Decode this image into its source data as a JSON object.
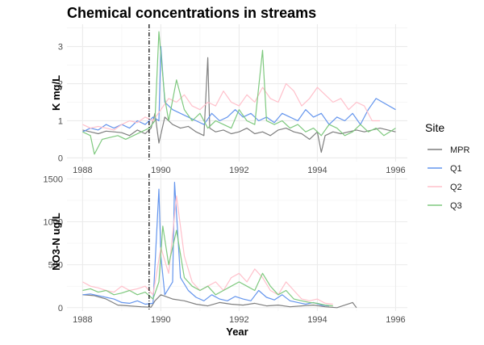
{
  "chart_data": [
    {
      "type": "line",
      "title": "Chemical concentrations in streams",
      "xlabel": "",
      "ylabel": "K mg/L",
      "xlim": [
        1987.6,
        1996.3
      ],
      "ylim": [
        -0.1,
        3.6
      ],
      "xticks": [
        1988,
        1990,
        1992,
        1994,
        1996
      ],
      "xtick_labels": [
        "1988",
        "1990",
        "1992",
        "1994",
        "1996"
      ],
      "yticks": [
        0,
        1,
        2,
        3
      ],
      "ytick_labels": [
        "0",
        "1",
        "2",
        "3"
      ],
      "vline_x": 1989.7,
      "grid": true,
      "legend": "right",
      "series": [
        {
          "name": "MPR",
          "color": "#7f7f7f",
          "x": [
            1988.0,
            1988.2,
            1988.4,
            1988.6,
            1988.8,
            1989.0,
            1989.2,
            1989.4,
            1989.6,
            1989.75,
            1989.85,
            1989.95,
            1990.1,
            1990.3,
            1990.5,
            1990.7,
            1990.9,
            1991.1,
            1991.2,
            1991.25,
            1991.4,
            1991.6,
            1991.8,
            1992.0,
            1992.2,
            1992.4,
            1992.6,
            1992.8,
            1993.0,
            1993.2,
            1993.4,
            1993.6,
            1993.8,
            1994.0,
            1994.1,
            1994.2,
            1994.4,
            1994.6,
            1994.8,
            1995.0,
            1995.2,
            1995.4,
            1995.6,
            1996.0
          ],
          "y": [
            0.75,
            0.7,
            0.65,
            0.72,
            0.7,
            0.68,
            0.6,
            0.75,
            0.65,
            0.8,
            1.2,
            0.4,
            1.1,
            0.9,
            0.8,
            0.85,
            0.7,
            0.6,
            2.7,
            0.8,
            0.7,
            0.75,
            0.65,
            0.7,
            0.8,
            0.65,
            0.7,
            0.6,
            0.75,
            0.8,
            0.7,
            0.65,
            0.5,
            0.7,
            0.15,
            0.6,
            0.7,
            0.65,
            0.7,
            0.75,
            0.7,
            0.75,
            0.8,
            0.7
          ]
        },
        {
          "name": "Q1",
          "color": "#6495ed",
          "x": [
            1988.0,
            1988.2,
            1988.4,
            1988.6,
            1988.8,
            1989.0,
            1989.2,
            1989.4,
            1989.6,
            1989.8,
            1989.95,
            1990.0,
            1990.1,
            1990.3,
            1990.5,
            1990.7,
            1990.9,
            1991.1,
            1991.3,
            1991.5,
            1991.7,
            1991.9,
            1992.1,
            1992.3,
            1992.5,
            1992.7,
            1992.9,
            1993.1,
            1993.3,
            1993.5,
            1993.7,
            1993.9,
            1994.1,
            1994.3,
            1994.5,
            1994.7,
            1994.9,
            1995.1,
            1995.3,
            1995.5,
            1996.0
          ],
          "y": [
            0.7,
            0.8,
            0.75,
            0.9,
            0.8,
            0.9,
            0.8,
            1.0,
            0.9,
            1.1,
            1.0,
            3.0,
            1.5,
            1.3,
            1.2,
            1.1,
            1.0,
            0.9,
            1.2,
            1.0,
            1.1,
            1.3,
            1.1,
            1.2,
            1.0,
            1.1,
            0.95,
            1.2,
            1.1,
            1.0,
            1.3,
            1.1,
            1.2,
            0.9,
            1.1,
            1.0,
            1.2,
            0.9,
            1.3,
            1.6,
            1.3
          ]
        },
        {
          "name": "Q2",
          "color": "#ffc0cb",
          "x": [
            1988.0,
            1988.2,
            1988.4,
            1988.6,
            1988.8,
            1989.0,
            1989.2,
            1989.4,
            1989.6,
            1989.8,
            1990.0,
            1990.2,
            1990.4,
            1990.6,
            1990.8,
            1991.0,
            1991.2,
            1991.4,
            1991.6,
            1991.8,
            1992.0,
            1992.2,
            1992.4,
            1992.6,
            1992.8,
            1993.0,
            1993.2,
            1993.4,
            1993.6,
            1993.8,
            1994.0,
            1994.2,
            1994.4,
            1994.6,
            1994.8,
            1995.0,
            1995.2,
            1995.4,
            1995.6
          ],
          "y": [
            0.9,
            0.8,
            0.85,
            0.8,
            0.75,
            0.9,
            1.0,
            0.95,
            1.1,
            1.0,
            1.3,
            1.6,
            1.5,
            1.7,
            1.4,
            1.3,
            1.5,
            1.4,
            1.8,
            1.5,
            1.4,
            1.7,
            1.5,
            1.9,
            1.6,
            1.5,
            2.0,
            1.8,
            1.4,
            1.6,
            1.9,
            1.7,
            1.5,
            1.6,
            1.3,
            1.5,
            1.4,
            1.0,
            1.0
          ]
        },
        {
          "name": "Q3",
          "color": "#7fc97f",
          "x": [
            1988.0,
            1988.2,
            1988.3,
            1988.5,
            1988.7,
            1988.9,
            1989.1,
            1989.3,
            1989.5,
            1989.7,
            1989.85,
            1989.95,
            1990.1,
            1990.2,
            1990.4,
            1990.6,
            1990.8,
            1991.0,
            1991.2,
            1991.4,
            1991.6,
            1991.8,
            1992.0,
            1992.2,
            1992.4,
            1992.6,
            1992.7,
            1992.9,
            1993.1,
            1993.3,
            1993.5,
            1993.7,
            1993.9,
            1994.1,
            1994.3,
            1994.5,
            1994.7,
            1994.9,
            1995.1,
            1995.3,
            1995.5,
            1995.7,
            1996.0
          ],
          "y": [
            0.7,
            0.6,
            0.1,
            0.5,
            0.55,
            0.6,
            0.5,
            0.6,
            0.7,
            0.8,
            1.0,
            3.4,
            1.6,
            1.0,
            2.1,
            1.3,
            1.0,
            1.2,
            0.8,
            1.0,
            0.9,
            0.8,
            1.3,
            1.0,
            0.9,
            2.9,
            1.0,
            0.9,
            1.0,
            0.8,
            0.9,
            0.7,
            0.8,
            0.6,
            0.9,
            0.8,
            0.6,
            0.7,
            0.9,
            0.7,
            0.8,
            0.6,
            0.8
          ]
        }
      ]
    },
    {
      "type": "line",
      "title": "",
      "xlabel": "Year",
      "ylabel": "NO3-N ug/L",
      "xlim": [
        1987.6,
        1996.3
      ],
      "ylim": [
        -40,
        1560
      ],
      "xticks": [
        1988,
        1990,
        1992,
        1994,
        1996
      ],
      "xtick_labels": [
        "1988",
        "1990",
        "1992",
        "1994",
        "1996"
      ],
      "yticks": [
        0,
        500,
        1000,
        1500
      ],
      "ytick_labels": [
        "0",
        "500",
        "1000",
        "1500"
      ],
      "vline_x": 1989.7,
      "grid": true,
      "legend": "right",
      "series": [
        {
          "name": "MPR",
          "color": "#7f7f7f",
          "x": [
            1988.0,
            1988.3,
            1988.6,
            1988.9,
            1989.2,
            1989.5,
            1989.75,
            1989.85,
            1990.0,
            1990.3,
            1990.6,
            1990.9,
            1991.2,
            1991.5,
            1991.8,
            1992.1,
            1992.4,
            1992.7,
            1993.0,
            1993.3,
            1993.6,
            1993.9,
            1994.2,
            1994.5,
            1994.9,
            1995.0
          ],
          "y": [
            150,
            140,
            100,
            30,
            20,
            10,
            5,
            80,
            150,
            100,
            80,
            40,
            20,
            60,
            40,
            30,
            50,
            20,
            30,
            10,
            20,
            30,
            10,
            0,
            60,
            0
          ]
        },
        {
          "name": "Q1",
          "color": "#6495ed",
          "x": [
            1988.0,
            1988.2,
            1988.4,
            1988.6,
            1988.8,
            1989.0,
            1989.2,
            1989.4,
            1989.6,
            1989.8,
            1989.95,
            1990.0,
            1990.1,
            1990.3,
            1990.35,
            1990.5,
            1990.7,
            1990.9,
            1991.1,
            1991.3,
            1991.5,
            1991.7,
            1991.9,
            1992.1,
            1992.3,
            1992.5,
            1992.7,
            1992.9,
            1993.1,
            1993.3,
            1993.5,
            1993.7,
            1993.9,
            1994.1,
            1994.3
          ],
          "y": [
            150,
            160,
            140,
            120,
            100,
            60,
            50,
            80,
            40,
            50,
            1380,
            600,
            150,
            300,
            1460,
            350,
            200,
            120,
            80,
            150,
            100,
            80,
            130,
            100,
            80,
            200,
            120,
            90,
            150,
            80,
            60,
            40,
            60,
            30,
            20
          ]
        },
        {
          "name": "Q2",
          "color": "#ffc0cb",
          "x": [
            1988.0,
            1988.2,
            1988.4,
            1988.6,
            1988.8,
            1989.0,
            1989.2,
            1989.4,
            1989.6,
            1989.8,
            1990.0,
            1990.2,
            1990.4,
            1990.6,
            1990.8,
            1991.0,
            1991.2,
            1991.4,
            1991.6,
            1991.8,
            1992.0,
            1992.2,
            1992.4,
            1992.6,
            1992.8,
            1993.0,
            1993.2,
            1993.4,
            1993.6,
            1993.8,
            1994.0,
            1994.2,
            1994.4
          ],
          "y": [
            300,
            250,
            230,
            200,
            180,
            250,
            200,
            220,
            250,
            150,
            700,
            400,
            1300,
            600,
            300,
            200,
            250,
            300,
            200,
            350,
            400,
            300,
            450,
            350,
            200,
            150,
            300,
            200,
            100,
            80,
            100,
            50,
            40
          ]
        },
        {
          "name": "Q3",
          "color": "#7fc97f",
          "x": [
            1988.0,
            1988.2,
            1988.4,
            1988.6,
            1988.8,
            1989.0,
            1989.2,
            1989.4,
            1989.6,
            1989.8,
            1989.95,
            1990.05,
            1990.2,
            1990.4,
            1990.6,
            1990.8,
            1991.0,
            1991.2,
            1991.4,
            1991.6,
            1991.8,
            1992.0,
            1992.2,
            1992.4,
            1992.6,
            1992.8,
            1993.0,
            1993.2,
            1993.4,
            1993.6,
            1993.8,
            1994.0,
            1994.2,
            1994.4
          ],
          "y": [
            200,
            220,
            180,
            200,
            150,
            170,
            200,
            150,
            180,
            100,
            300,
            950,
            500,
            900,
            350,
            250,
            200,
            250,
            150,
            200,
            250,
            300,
            250,
            200,
            400,
            250,
            150,
            200,
            100,
            80,
            60,
            50,
            30,
            20
          ]
        }
      ]
    }
  ],
  "legend": {
    "title": "Site",
    "items": [
      {
        "label": "MPR",
        "color": "#7f7f7f"
      },
      {
        "label": "Q1",
        "color": "#6495ed"
      },
      {
        "label": "Q2",
        "color": "#ffc0cb"
      },
      {
        "label": "Q3",
        "color": "#7fc97f"
      }
    ]
  }
}
